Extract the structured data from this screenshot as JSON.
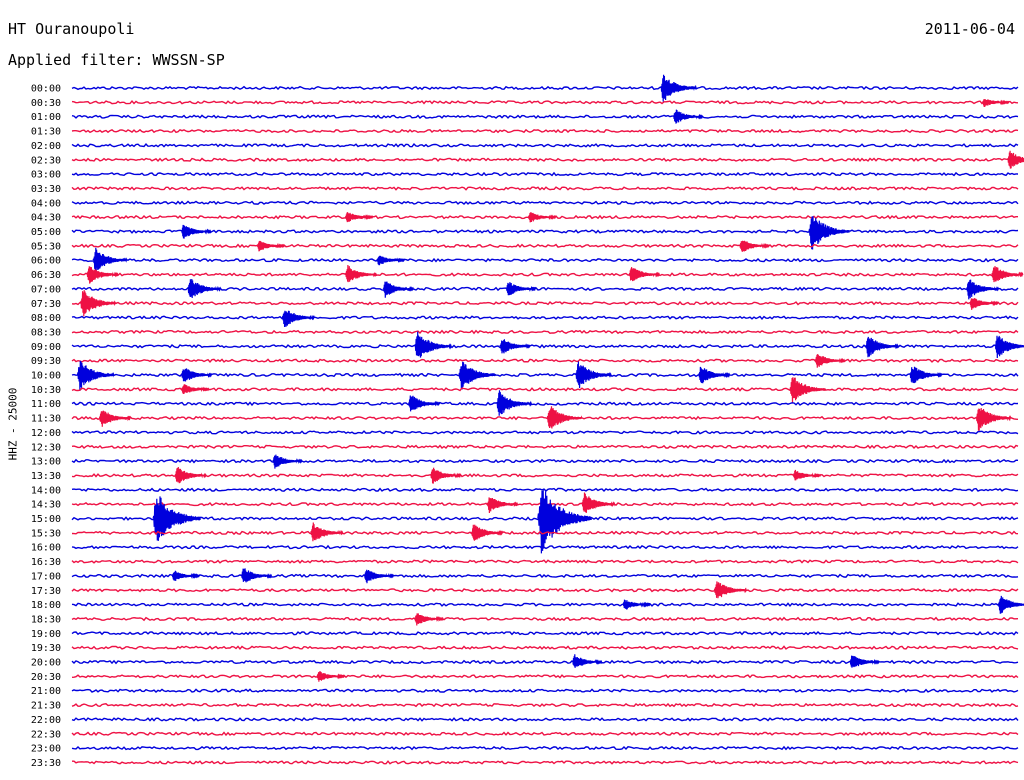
{
  "header": {
    "station": "HT Ouranoupoli",
    "date": "2011-06-04",
    "filter_label": "Applied filter: WWSSN-SP",
    "channel_label": "HHZ - 25000"
  },
  "colors": {
    "even_trace": "#0000dd",
    "odd_trace": "#ee1144"
  },
  "chart_data": {
    "type": "line",
    "title": "HT Ouranoupoli",
    "subtitle": "Applied filter: WWSSN-SP",
    "ylabel": "HHZ - 25000",
    "xlabel": "",
    "grid": false,
    "legend": "none",
    "row_labels": [
      "00:00",
      "00:30",
      "01:00",
      "01:30",
      "02:00",
      "02:30",
      "03:00",
      "03:30",
      "04:00",
      "04:30",
      "05:00",
      "05:30",
      "06:00",
      "06:30",
      "07:00",
      "07:30",
      "08:00",
      "08:30",
      "09:00",
      "09:30",
      "10:00",
      "10:30",
      "11:00",
      "11:30",
      "12:00",
      "12:30",
      "13:00",
      "13:30",
      "14:00",
      "14:30",
      "15:00",
      "15:30",
      "16:00",
      "16:30",
      "17:00",
      "17:30",
      "18:00",
      "18:30",
      "19:00",
      "19:30",
      "20:00",
      "20:30",
      "21:00",
      "21:30",
      "22:00",
      "22:30",
      "23:00",
      "23:30"
    ],
    "trace_minutes": 30,
    "events": [
      {
        "row": 0,
        "minute": 18.8,
        "amplitude": 1.5
      },
      {
        "row": 1,
        "minute": 29.0,
        "amplitude": 0.5
      },
      {
        "row": 2,
        "minute": 19.2,
        "amplitude": 0.8
      },
      {
        "row": 5,
        "minute": 29.8,
        "amplitude": 1.0
      },
      {
        "row": 9,
        "minute": 8.8,
        "amplitude": 0.6
      },
      {
        "row": 9,
        "minute": 14.6,
        "amplitude": 0.6
      },
      {
        "row": 10,
        "minute": 3.6,
        "amplitude": 0.8
      },
      {
        "row": 10,
        "minute": 23.5,
        "amplitude": 2.0
      },
      {
        "row": 11,
        "minute": 6.0,
        "amplitude": 0.6
      },
      {
        "row": 11,
        "minute": 21.3,
        "amplitude": 0.8
      },
      {
        "row": 12,
        "minute": 0.8,
        "amplitude": 1.3
      },
      {
        "row": 12,
        "minute": 9.8,
        "amplitude": 0.6
      },
      {
        "row": 13,
        "minute": 0.6,
        "amplitude": 1.0
      },
      {
        "row": 13,
        "minute": 8.8,
        "amplitude": 1.0
      },
      {
        "row": 13,
        "minute": 17.8,
        "amplitude": 0.9
      },
      {
        "row": 13,
        "minute": 29.3,
        "amplitude": 1.0
      },
      {
        "row": 14,
        "minute": 3.8,
        "amplitude": 1.2
      },
      {
        "row": 14,
        "minute": 10.0,
        "amplitude": 0.9
      },
      {
        "row": 14,
        "minute": 13.9,
        "amplitude": 0.8
      },
      {
        "row": 14,
        "minute": 28.5,
        "amplitude": 1.1
      },
      {
        "row": 15,
        "minute": 0.4,
        "amplitude": 1.5
      },
      {
        "row": 15,
        "minute": 28.6,
        "amplitude": 0.7
      },
      {
        "row": 16,
        "minute": 6.8,
        "amplitude": 1.1
      },
      {
        "row": 18,
        "minute": 11.0,
        "amplitude": 1.6
      },
      {
        "row": 18,
        "minute": 13.7,
        "amplitude": 0.9
      },
      {
        "row": 18,
        "minute": 25.3,
        "amplitude": 1.2
      },
      {
        "row": 18,
        "minute": 29.4,
        "amplitude": 1.3
      },
      {
        "row": 19,
        "minute": 23.7,
        "amplitude": 0.8
      },
      {
        "row": 20,
        "minute": 0.3,
        "amplitude": 1.6
      },
      {
        "row": 20,
        "minute": 3.6,
        "amplitude": 0.9
      },
      {
        "row": 20,
        "minute": 12.4,
        "amplitude": 1.6
      },
      {
        "row": 20,
        "minute": 16.1,
        "amplitude": 1.5
      },
      {
        "row": 20,
        "minute": 20.0,
        "amplitude": 1.0
      },
      {
        "row": 20,
        "minute": 26.7,
        "amplitude": 1.1
      },
      {
        "row": 21,
        "minute": 3.6,
        "amplitude": 0.6
      },
      {
        "row": 21,
        "minute": 22.9,
        "amplitude": 1.5
      },
      {
        "row": 22,
        "minute": 10.8,
        "amplitude": 1.0
      },
      {
        "row": 22,
        "minute": 13.6,
        "amplitude": 1.4
      },
      {
        "row": 23,
        "minute": 1.0,
        "amplitude": 1.0
      },
      {
        "row": 23,
        "minute": 15.2,
        "amplitude": 1.4
      },
      {
        "row": 23,
        "minute": 28.8,
        "amplitude": 1.4
      },
      {
        "row": 26,
        "minute": 6.5,
        "amplitude": 0.8
      },
      {
        "row": 27,
        "minute": 3.4,
        "amplitude": 1.0
      },
      {
        "row": 27,
        "minute": 11.5,
        "amplitude": 0.9
      },
      {
        "row": 27,
        "minute": 23.0,
        "amplitude": 0.6
      },
      {
        "row": 29,
        "minute": 13.3,
        "amplitude": 0.9
      },
      {
        "row": 29,
        "minute": 16.3,
        "amplitude": 1.2
      },
      {
        "row": 30,
        "minute": 2.7,
        "amplitude": 2.8
      },
      {
        "row": 30,
        "minute": 14.9,
        "amplitude": 3.5
      },
      {
        "row": 31,
        "minute": 7.7,
        "amplitude": 1.1
      },
      {
        "row": 31,
        "minute": 12.8,
        "amplitude": 1.0
      },
      {
        "row": 34,
        "minute": 3.3,
        "amplitude": 0.6
      },
      {
        "row": 34,
        "minute": 5.5,
        "amplitude": 0.9
      },
      {
        "row": 34,
        "minute": 9.4,
        "amplitude": 0.8
      },
      {
        "row": 35,
        "minute": 20.5,
        "amplitude": 1.1
      },
      {
        "row": 36,
        "minute": 17.6,
        "amplitude": 0.6
      },
      {
        "row": 36,
        "minute": 29.5,
        "amplitude": 1.0
      },
      {
        "row": 37,
        "minute": 11.0,
        "amplitude": 0.7
      },
      {
        "row": 40,
        "minute": 16.0,
        "amplitude": 0.8
      },
      {
        "row": 40,
        "minute": 24.8,
        "amplitude": 0.8
      },
      {
        "row": 41,
        "minute": 7.9,
        "amplitude": 0.6
      }
    ]
  }
}
